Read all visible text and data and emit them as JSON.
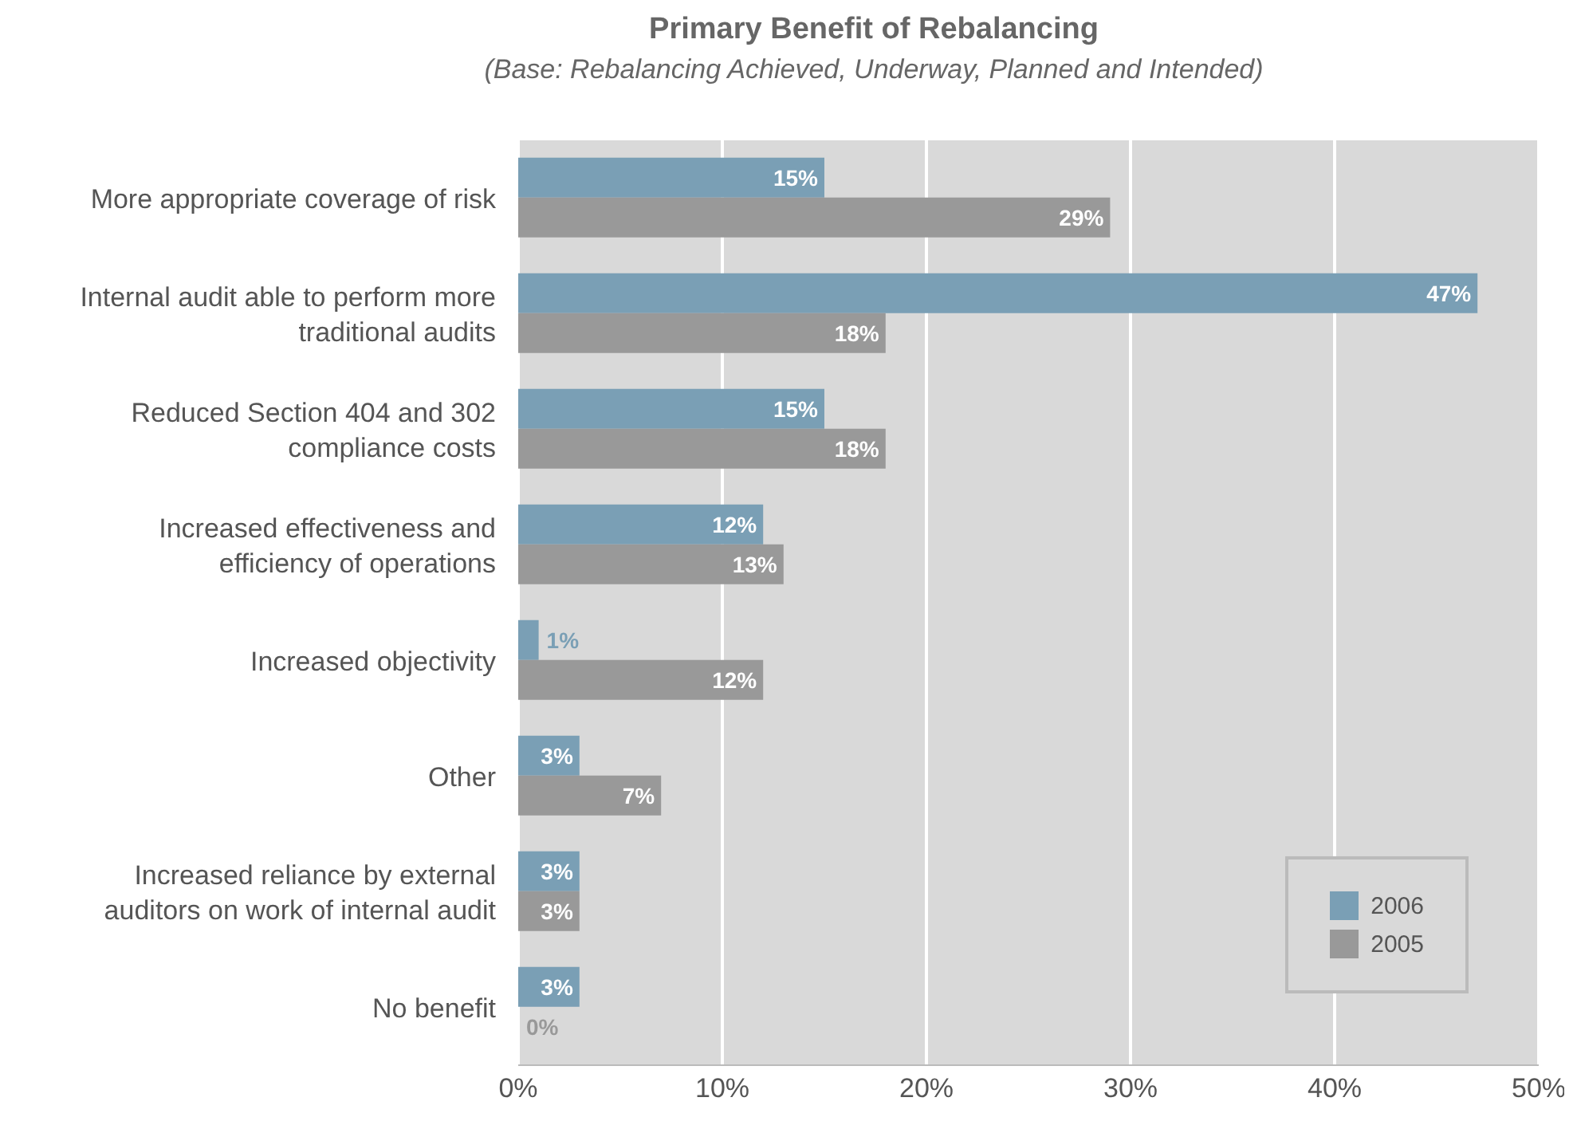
{
  "chart_data": {
    "type": "bar",
    "orientation": "horizontal",
    "title": "Primary Benefit of Rebalancing",
    "subtitle": "(Base: Rebalancing Achieved, Underway, Planned and Intended)",
    "categories": [
      "More appropriate coverage of risk",
      "Internal audit able to perform more traditional audits",
      "Reduced Section 404 and 302 compliance costs",
      "Increased effectiveness and efficiency of operations",
      "Increased objectivity",
      "Other",
      "Increased reliance by external auditors on work of internal audit",
      "No benefit"
    ],
    "series": [
      {
        "name": "2006",
        "color": "#7a9fb5",
        "values": [
          15,
          47,
          15,
          12,
          1,
          3,
          3,
          3
        ],
        "value_labels": [
          "15%",
          "47%",
          "15%",
          "12%",
          "1%",
          "3%",
          "3%",
          "3%"
        ]
      },
      {
        "name": "2005",
        "color": "#999999",
        "values": [
          29,
          18,
          18,
          13,
          12,
          7,
          3,
          0
        ],
        "value_labels": [
          "29%",
          "18%",
          "18%",
          "13%",
          "12%",
          "7%",
          "3%",
          "0%"
        ]
      }
    ],
    "xlim": [
      0,
      50
    ],
    "xticks": [
      {
        "value": 0,
        "label": "0%"
      },
      {
        "value": 10,
        "label": "10%"
      },
      {
        "value": 20,
        "label": "20%"
      },
      {
        "value": 30,
        "label": "30%"
      },
      {
        "value": 40,
        "label": "40%"
      },
      {
        "value": 50,
        "label": "50%"
      }
    ],
    "grid": "x",
    "legend": "bottom right"
  }
}
